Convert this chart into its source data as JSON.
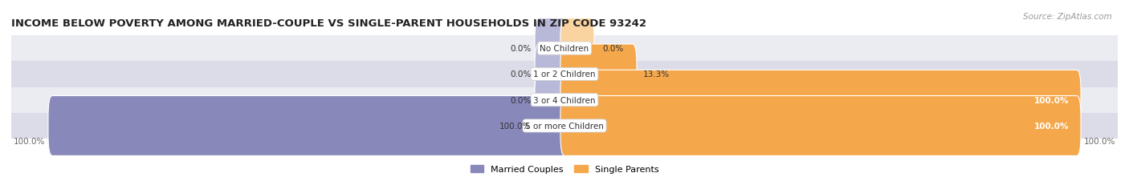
{
  "title": "INCOME BELOW POVERTY AMONG MARRIED-COUPLE VS SINGLE-PARENT HOUSEHOLDS IN ZIP CODE 93242",
  "source": "Source: ZipAtlas.com",
  "categories": [
    "No Children",
    "1 or 2 Children",
    "3 or 4 Children",
    "5 or more Children"
  ],
  "married_values": [
    0.0,
    0.0,
    0.0,
    100.0
  ],
  "single_values": [
    0.0,
    13.3,
    100.0,
    100.0
  ],
  "married_color": "#8888bb",
  "married_color_light": "#b8b8d8",
  "single_color": "#f5a84b",
  "single_color_light": "#fad4a0",
  "row_bg_colors": [
    "#ebebf2",
    "#dcdce8",
    "#ebebf2",
    "#dcdce8"
  ],
  "legend_married": "Married Couples",
  "legend_single": "Single Parents",
  "title_fontsize": 9.5,
  "source_fontsize": 7.5,
  "label_fontsize": 7.5,
  "cat_fontsize": 7.5,
  "legend_fontsize": 8,
  "max_val": 100.0,
  "fig_width": 14.06,
  "fig_height": 2.32
}
